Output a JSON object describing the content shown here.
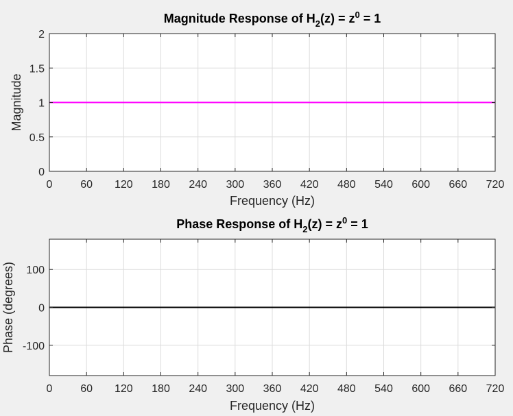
{
  "chart_data": [
    {
      "type": "line",
      "title": "Magnitude Response of H2(z) = z0 = 1",
      "title_parts": [
        "Magnitude Response of H",
        "2",
        "(z) = z",
        "0",
        " = 1"
      ],
      "xlabel": "Frequency (Hz)",
      "ylabel": "Magnitude",
      "xlim": [
        0,
        720
      ],
      "ylim": [
        0,
        2
      ],
      "xticks": [
        0,
        60,
        120,
        180,
        240,
        300,
        360,
        420,
        480,
        540,
        600,
        660,
        720
      ],
      "yticks": [
        0,
        0.5,
        1,
        1.5,
        2
      ],
      "ytick_labels": [
        "0",
        "0.5",
        "1",
        "1.5",
        "2"
      ],
      "grid": true,
      "series": [
        {
          "color": "#ff00ff",
          "x": [
            0,
            720
          ],
          "y": [
            1,
            1
          ]
        }
      ]
    },
    {
      "type": "line",
      "title": "Phase Response of H2(z) = z0 = 1",
      "title_parts": [
        "Phase Response of H",
        "2",
        "(z) = z",
        "0",
        " = 1"
      ],
      "xlabel": "Frequency (Hz)",
      "ylabel": "Phase (degrees)",
      "xlim": [
        0,
        720
      ],
      "ylim": [
        -180,
        180
      ],
      "xticks": [
        0,
        60,
        120,
        180,
        240,
        300,
        360,
        420,
        480,
        540,
        600,
        660,
        720
      ],
      "yticks": [
        -100,
        0,
        100
      ],
      "ytick_labels": [
        "-100",
        "0",
        "100"
      ],
      "grid": true,
      "series": [
        {
          "color": "#000000",
          "x": [
            0,
            720
          ],
          "y": [
            0,
            0
          ]
        }
      ]
    }
  ]
}
